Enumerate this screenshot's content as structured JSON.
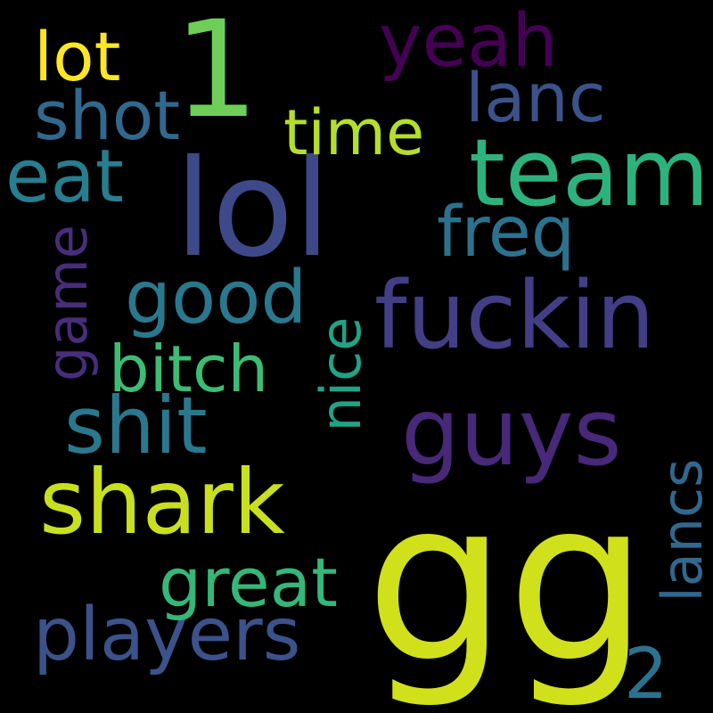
{
  "words": {
    "gg": {
      "text": "gg",
      "color": "#d0e11c"
    },
    "lol": {
      "text": "lol",
      "color": "#3e4989"
    },
    "one": {
      "text": "1",
      "color": "#6ece58"
    },
    "team": {
      "text": "team",
      "color": "#2db27d"
    },
    "fuckin": {
      "text": "fuckin",
      "color": "#433e85"
    },
    "guys": {
      "text": "guys",
      "color": "#482878"
    },
    "shark": {
      "text": "shark",
      "color": "#c8e020"
    },
    "shit": {
      "text": "shit",
      "color": "#2a788e"
    },
    "players": {
      "text": "players",
      "color": "#3b528b"
    },
    "yeah": {
      "text": "yeah",
      "color": "#440154"
    },
    "lanc": {
      "text": "lanc",
      "color": "#3b528b"
    },
    "shot": {
      "text": "shot",
      "color": "#31688e"
    },
    "eat": {
      "text": "eat",
      "color": "#287d8e"
    },
    "time": {
      "text": "time",
      "color": "#b5de2b"
    },
    "lot": {
      "text": "lot",
      "color": "#fde725"
    },
    "freq": {
      "text": "freq",
      "color": "#2c728e"
    },
    "good": {
      "text": "good",
      "color": "#2a788e"
    },
    "game": {
      "text": "game",
      "color": "#472d7b"
    },
    "bitch": {
      "text": "bitch",
      "color": "#3dbc74"
    },
    "nice": {
      "text": "nice",
      "color": "#20a386"
    },
    "great": {
      "text": "great",
      "color": "#35b779"
    },
    "lancs": {
      "text": "lancs",
      "color": "#31688e"
    },
    "two": {
      "text": "2",
      "color": "#2c728e"
    }
  }
}
